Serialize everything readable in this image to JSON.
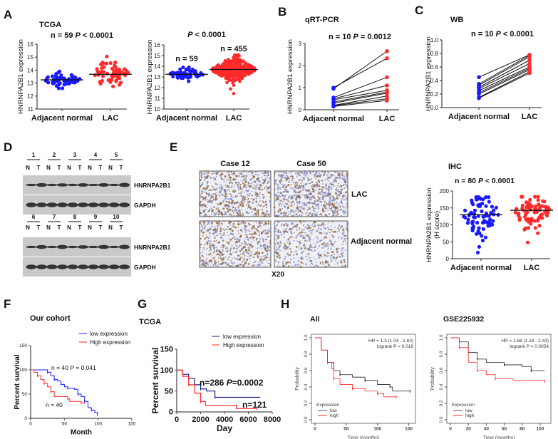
{
  "panel_letters": {
    "A": "A",
    "B": "B",
    "C": "C",
    "D": "D",
    "E": "E",
    "F": "F",
    "G": "G",
    "H": "H"
  },
  "colors": {
    "blue": "#1a1aff",
    "red": "#ff2a2a",
    "navy": "#1a1a8c",
    "black": "#222222"
  },
  "chart_data": [
    {
      "id": "A1",
      "type": "scatter",
      "title": "TCGA",
      "stat": {
        "n": "n = 59 ",
        "p": "P",
        "rest": " < 0.0001"
      },
      "ylabel": "HNRNPA2B1 expression",
      "ylim": [
        11,
        16
      ],
      "yticks": [
        "11",
        "12",
        "13",
        "14",
        "15",
        "16"
      ],
      "categories": [
        "Adjacent normal",
        "LAC"
      ],
      "groups": [
        {
          "name": "Adjacent normal",
          "n": 59,
          "mean": 13.25,
          "sd": 0.25,
          "min": 12.6,
          "max": 13.9,
          "color": "#1a1aff"
        },
        {
          "name": "LAC",
          "n": 59,
          "mean": 13.68,
          "sd": 0.5,
          "min": 12.75,
          "max": 15.05,
          "color": "#ff2a2a"
        }
      ]
    },
    {
      "id": "A2",
      "type": "scatter",
      "title": "",
      "stat": {
        "n": "",
        "p": "P",
        "rest": " < 0.0001"
      },
      "ylabel": "HNRNPA2B1 expression",
      "ylim": [
        10,
        16
      ],
      "yticks": [
        "10",
        "11",
        "12",
        "13",
        "14",
        "15",
        "16"
      ],
      "categories": [
        "Adjacent normal",
        "LAC"
      ],
      "annotations": [
        "n = 59",
        "n = 455"
      ],
      "groups": [
        {
          "name": "Adjacent normal",
          "n": 59,
          "mean": 13.25,
          "sd": 0.25,
          "min": 12.6,
          "max": 13.9,
          "color": "#1a1aff"
        },
        {
          "name": "LAC",
          "n": 455,
          "mean": 13.7,
          "sd": 0.45,
          "min": 11.45,
          "max": 15.05,
          "color": "#ff2a2a"
        }
      ]
    },
    {
      "id": "B",
      "type": "line",
      "title": "qRT-PCR",
      "stat": {
        "n": "n = 10 ",
        "p": "P",
        "rest": " = 0.0012"
      },
      "ylabel": "HNRNPA2B1 expression",
      "ylim": [
        0,
        3
      ],
      "yticks": [
        "0",
        "1",
        "2",
        "3"
      ],
      "categories": [
        "Adjacent normal",
        "LAC"
      ],
      "pairs": [
        [
          0.95,
          2.65
        ],
        [
          1.0,
          2.33
        ],
        [
          0.55,
          1.47
        ],
        [
          0.5,
          1.1
        ],
        [
          0.45,
          0.88
        ],
        [
          0.35,
          0.8
        ],
        [
          0.3,
          0.75
        ],
        [
          0.2,
          0.62
        ],
        [
          0.18,
          0.5
        ],
        [
          0.15,
          0.42
        ]
      ]
    },
    {
      "id": "C",
      "type": "line",
      "title": "WB",
      "stat": {
        "n": "n = 10 ",
        "p": "P",
        "rest": " < 0.0001"
      },
      "ylabel": "HNRNPA2B1 expression",
      "ylim": [
        0,
        1
      ],
      "yticks": [
        "0.0",
        "0.2",
        "0.4",
        "0.6",
        "0.8",
        "1.0"
      ],
      "categories": [
        "Adjacent normal",
        "LAC"
      ],
      "pairs": [
        [
          0.45,
          0.78
        ],
        [
          0.35,
          0.77
        ],
        [
          0.33,
          0.75
        ],
        [
          0.3,
          0.7
        ],
        [
          0.28,
          0.65
        ],
        [
          0.25,
          0.6
        ],
        [
          0.22,
          0.58
        ],
        [
          0.2,
          0.56
        ],
        [
          0.15,
          0.53
        ],
        [
          0.14,
          0.51
        ]
      ]
    },
    {
      "id": "E-IHC",
      "type": "scatter",
      "title": "IHC",
      "stat": {
        "n": "n = 80 ",
        "p": "P",
        "rest": " < 0.0001"
      },
      "ylabel": "HNRNPA2B1 expression",
      "ylabel2": "(H score)",
      "ylim": [
        0,
        200
      ],
      "yticks": [
        "0",
        "50",
        "100",
        "150",
        "200"
      ],
      "categories": [
        "Adjacent normal",
        "LAC"
      ],
      "groups": [
        {
          "name": "Adjacent normal",
          "n": 80,
          "mean": 130,
          "sd": 30,
          "min": 18,
          "max": 182,
          "color": "#1a1aff"
        },
        {
          "name": "LAC",
          "n": 80,
          "mean": 143,
          "sd": 28,
          "min": 48,
          "max": 183,
          "color": "#ff2a2a"
        }
      ]
    },
    {
      "id": "F",
      "type": "line",
      "title": "Our cohort",
      "xlabel": "Month",
      "ylabel": "Percent survival",
      "xlim": [
        0,
        150
      ],
      "ylim": [
        0,
        150
      ],
      "xticks": [
        "0",
        "50",
        "100",
        "150"
      ],
      "yticks": [
        "0",
        "50",
        "100",
        "150"
      ],
      "legend": [
        "low expression",
        "High expression"
      ],
      "legend_position": "top-right",
      "annotations": {
        "top": {
          "n": "n = 40  ",
          "p": "P",
          "rest": " = 0.041"
        },
        "bottom": "n = 40"
      },
      "series": [
        {
          "name": "low expression",
          "points": [
            [
              0,
              100
            ],
            [
              20,
              100
            ],
            [
              25,
              95
            ],
            [
              30,
              88
            ],
            [
              35,
              80
            ],
            [
              40,
              77
            ],
            [
              45,
              70
            ],
            [
              50,
              65
            ],
            [
              55,
              62
            ],
            [
              65,
              60
            ],
            [
              70,
              50
            ],
            [
              75,
              45
            ],
            [
              80,
              35
            ],
            [
              85,
              22
            ],
            [
              90,
              17
            ],
            [
              95,
              12
            ],
            [
              99,
              8
            ]
          ]
        },
        {
          "name": "High expression",
          "points": [
            [
              0,
              100
            ],
            [
              5,
              95
            ],
            [
              10,
              88
            ],
            [
              15,
              80
            ],
            [
              20,
              72
            ],
            [
              25,
              65
            ],
            [
              30,
              55
            ],
            [
              35,
              45
            ],
            [
              55,
              40
            ],
            [
              58,
              35
            ],
            [
              75,
              32
            ],
            [
              80,
              30
            ]
          ]
        }
      ]
    },
    {
      "id": "G",
      "type": "line",
      "title": "TCGA",
      "xlabel": "Day",
      "ylabel": "Percent survival",
      "xlim": [
        0,
        8000
      ],
      "ylim": [
        0,
        150
      ],
      "xticks": [
        "0",
        "2000",
        "4000",
        "6000",
        "8000"
      ],
      "yticks": [
        "0",
        "50",
        "100",
        "150"
      ],
      "legend": [
        "low expression",
        "High expression"
      ],
      "legend_position": "top-right",
      "annotations": {
        "top": {
          "n": "n=286 ",
          "p": "P",
          "rest": "=0.0002"
        },
        "bottom": "n=121"
      },
      "series": [
        {
          "name": "low expression",
          "points": [
            [
              0,
              100
            ],
            [
              500,
              90
            ],
            [
              1000,
              80
            ],
            [
              1500,
              65
            ],
            [
              2000,
              55
            ],
            [
              2500,
              50
            ],
            [
              3200,
              35
            ],
            [
              7000,
              35
            ]
          ]
        },
        {
          "name": "High expression",
          "points": [
            [
              0,
              100
            ],
            [
              500,
              85
            ],
            [
              1000,
              65
            ],
            [
              1500,
              45
            ],
            [
              2000,
              25
            ],
            [
              2400,
              15
            ],
            [
              5000,
              15
            ],
            [
              5000,
              8
            ],
            [
              6700,
              8
            ]
          ]
        }
      ]
    },
    {
      "id": "H1",
      "type": "line",
      "title": "All",
      "xlabel": "Time (months)",
      "ylabel": "Probability",
      "xlim": [
        0,
        155
      ],
      "ylim": [
        0,
        1
      ],
      "xticks": [
        "0",
        "50",
        "100",
        "150"
      ],
      "yticks": [
        "0.0",
        "0.2",
        "0.4",
        "0.6",
        "0.8",
        "1.0"
      ],
      "hr": "HR = 1.3 (1.04 - 1.63)",
      "logrank": "logrank P = 0.019",
      "legend_title": "Expression",
      "legend": [
        "low",
        "high"
      ],
      "legend_position": "bottom-left",
      "series": [
        {
          "name": "low",
          "points": [
            [
              0,
              1
            ],
            [
              10,
              0.85
            ],
            [
              20,
              0.7
            ],
            [
              30,
              0.6
            ],
            [
              40,
              0.55
            ],
            [
              60,
              0.52
            ],
            [
              80,
              0.48
            ],
            [
              100,
              0.43
            ],
            [
              120,
              0.4
            ],
            [
              124,
              0.35
            ],
            [
              152,
              0.35
            ]
          ]
        },
        {
          "name": "high",
          "points": [
            [
              0,
              1
            ],
            [
              10,
              0.85
            ],
            [
              20,
              0.7
            ],
            [
              27,
              0.62
            ],
            [
              30,
              0.5
            ],
            [
              40,
              0.43
            ],
            [
              60,
              0.38
            ],
            [
              80,
              0.35
            ],
            [
              100,
              0.32
            ],
            [
              110,
              0.28
            ],
            [
              130,
              0.28
            ]
          ]
        }
      ]
    },
    {
      "id": "H2",
      "type": "line",
      "title": "GSE225932",
      "xlabel": "Time (months)",
      "ylabel": "Probability",
      "xlim": [
        0,
        108
      ],
      "ylim": [
        0,
        1
      ],
      "xticks": [
        "0",
        "20",
        "40",
        "60",
        "80",
        "100"
      ],
      "yticks": [
        "0.0",
        "0.2",
        "0.4",
        "0.6",
        "0.8",
        "1.0"
      ],
      "hr": "HR = 1.68 (1.16 - 2.43)",
      "logrank": "logrank P = 0.0054",
      "legend_title": "Expression",
      "legend": [
        "low",
        "high"
      ],
      "legend_position": "bottom-left",
      "series": [
        {
          "name": "low",
          "points": [
            [
              0,
              1
            ],
            [
              5,
              1
            ],
            [
              10,
              0.95
            ],
            [
              20,
              0.82
            ],
            [
              30,
              0.74
            ],
            [
              40,
              0.7
            ],
            [
              60,
              0.67
            ],
            [
              80,
              0.65
            ],
            [
              90,
              0.6
            ],
            [
              105,
              0.6
            ]
          ]
        },
        {
          "name": "high",
          "points": [
            [
              0,
              1
            ],
            [
              5,
              1
            ],
            [
              10,
              0.88
            ],
            [
              20,
              0.7
            ],
            [
              30,
              0.6
            ],
            [
              40,
              0.55
            ],
            [
              50,
              0.5
            ],
            [
              70,
              0.48
            ],
            [
              105,
              0.47
            ]
          ]
        }
      ]
    }
  ],
  "blot": {
    "numbers_top": [
      "1",
      "2",
      "3",
      "4",
      "5"
    ],
    "numbers_bottom": [
      "6",
      "7",
      "8",
      "9",
      "10"
    ],
    "lane_n": "N",
    "lane_t": "T",
    "target": "HNRNPA2B1",
    "control": "GAPDH"
  },
  "ihc": {
    "case_a": "Case 12",
    "case_b": "Case 50",
    "row_lac": "LAC",
    "row_normal": "Adjacent normal",
    "magnification": "X20"
  }
}
